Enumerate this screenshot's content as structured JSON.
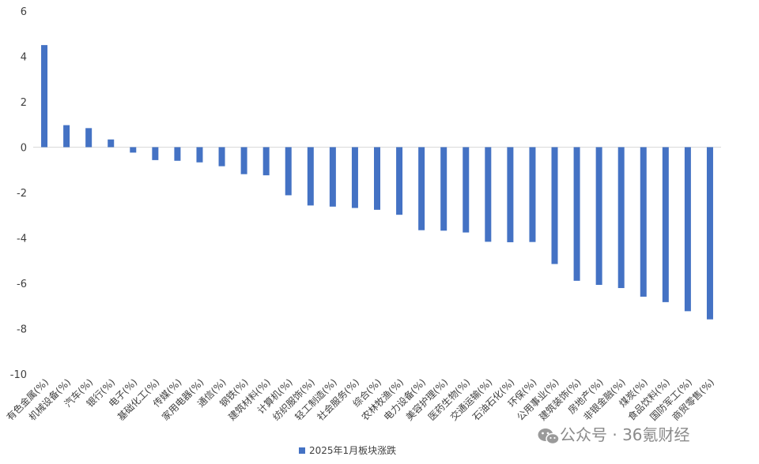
{
  "chart_data": {
    "type": "bar",
    "title": "",
    "xlabel": "",
    "ylabel": "",
    "ylim": [
      -10,
      6
    ],
    "yticks": [
      6,
      4,
      2,
      0,
      -2,
      -4,
      -6,
      -8,
      -10
    ],
    "grid": false,
    "legend_position": "bottom-center",
    "bar_color": "#4472c4",
    "categories": [
      "有色金属(%)",
      "机械设备(%)",
      "汽车(%)",
      "银行(%)",
      "电子(%)",
      "基础化工(%)",
      "传媒(%)",
      "家用电器(%)",
      "通信(%)",
      "钢铁(%)",
      "建筑材料(%)",
      "计算机(%)",
      "纺织服饰(%)",
      "轻工制造(%)",
      "社会服务(%)",
      "综合(%)",
      "农林牧渔(%)",
      "电力设备(%)",
      "美容护理(%)",
      "医药生物(%)",
      "交通运输(%)",
      "石油石化(%)",
      "环保(%)",
      "公用事业(%)",
      "建筑装饰(%)",
      "房地产(%)",
      "非银金融(%)",
      "煤炭(%)",
      "食品饮料(%)",
      "国防军工(%)",
      "商贸零售(%)"
    ],
    "series": [
      {
        "name": "2025年1月板块涨跌",
        "values": [
          4.5,
          0.97,
          0.84,
          0.34,
          -0.24,
          -0.57,
          -0.6,
          -0.67,
          -0.84,
          -1.19,
          -1.24,
          -2.12,
          -2.57,
          -2.62,
          -2.68,
          -2.76,
          -2.98,
          -3.66,
          -3.68,
          -3.76,
          -4.17,
          -4.19,
          -4.18,
          -5.15,
          -5.89,
          -6.07,
          -6.21,
          -6.59,
          -6.83,
          -7.23,
          -7.59
        ]
      }
    ]
  },
  "watermark": {
    "icon": "wechat-icon",
    "text": "公众号 · 36氪财经"
  }
}
